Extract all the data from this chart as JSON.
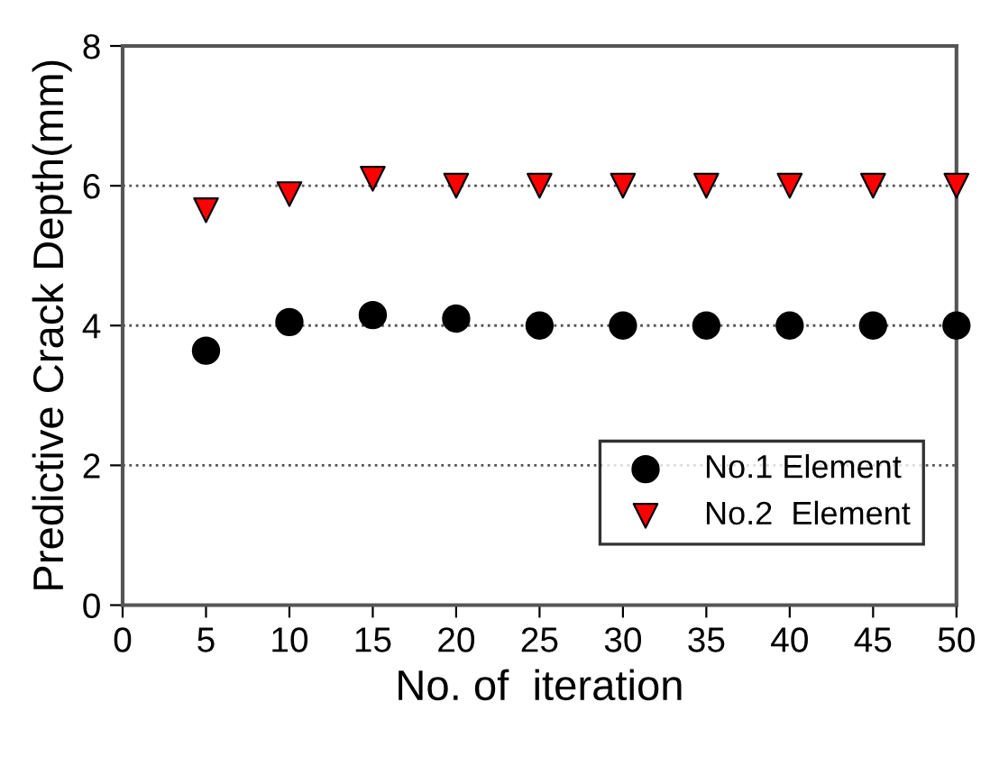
{
  "chart_data": {
    "type": "scatter",
    "xlabel": "No. of  iteration",
    "ylabel": "Predictive Crack Depth(mm)",
    "x": [
      5,
      10,
      15,
      20,
      25,
      30,
      35,
      40,
      45,
      50
    ],
    "series": [
      {
        "name": "No.1 Element",
        "color": "#000000",
        "marker": "circle",
        "values": [
          3.64,
          4.05,
          4.15,
          4.1,
          4.0,
          4.0,
          4.0,
          4.0,
          4.0,
          4.0
        ]
      },
      {
        "name": "No.2  Element",
        "color": "#ff0000",
        "marker": "triangle",
        "values": [
          5.65,
          5.88,
          6.1,
          6.0,
          6.0,
          6.0,
          6.0,
          6.0,
          6.0,
          6.0
        ]
      }
    ],
    "xlim": [
      0,
      50
    ],
    "xticks": [
      0,
      5,
      10,
      15,
      20,
      25,
      30,
      35,
      40,
      45,
      50
    ],
    "ylim": [
      0,
      8
    ],
    "yticks": [
      0,
      2,
      4,
      6,
      8
    ],
    "grid": "y",
    "legend": "bottom right"
  }
}
